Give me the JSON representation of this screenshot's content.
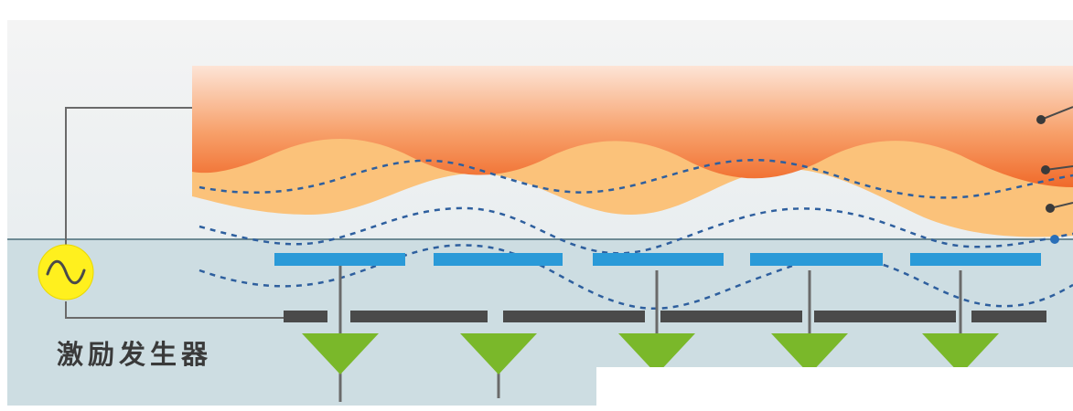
{
  "generator": {
    "label": "激励发生器",
    "icon": "sine-wave-icon",
    "color": "#fff01e"
  },
  "colors": {
    "tissue_top": "#fde4d6",
    "tissue_bottom": "#f27a3a",
    "tissue_band": "#fbc27a",
    "panel": "#cddde2",
    "upper_electrode": "#2a9ad8",
    "lower_electrode": "#4a4a4a",
    "sensor": "#7ab82a",
    "wire": "#6a6a6a",
    "field_line": "#2e5f9e"
  }
}
